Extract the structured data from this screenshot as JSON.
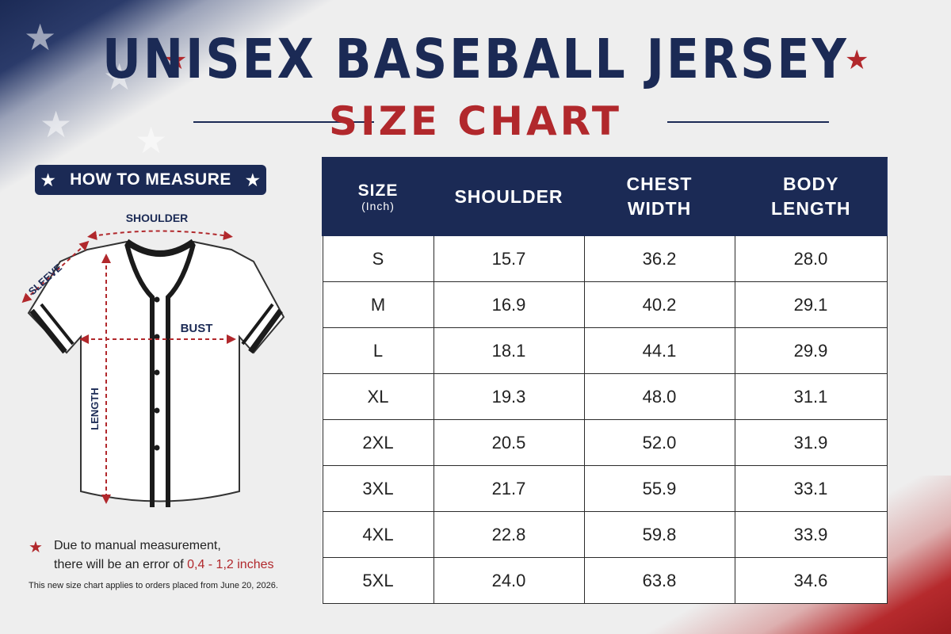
{
  "title": "UNISEX BASEBALL JERSEY",
  "subtitle": "SIZE CHART",
  "how_to_measure": "HOW TO MEASURE",
  "diagram_labels": {
    "shoulder": "SHOULDER",
    "sleeve": "SLEEVE",
    "bust": "BUST",
    "length": "LENGTH"
  },
  "note": {
    "line1": "Due to manual measurement,",
    "line2_prefix": "there will be an error of",
    "line2_error": "0,4 - 1,2 inches"
  },
  "disclaimer": "This new size chart applies to orders placed from June 20, 2026.",
  "table": {
    "headers": {
      "size": "SIZE",
      "size_unit": "(Inch)",
      "shoulder": "SHOULDER",
      "chest_1": "CHEST",
      "chest_2": "WIDTH",
      "body_1": "BODY",
      "body_2": "LENGTH"
    },
    "rows": [
      [
        "S",
        "15.7",
        "36.2",
        "28.0"
      ],
      [
        "M",
        "16.9",
        "40.2",
        "29.1"
      ],
      [
        "L",
        "18.1",
        "44.1",
        "29.9"
      ],
      [
        "XL",
        "19.3",
        "48.0",
        "31.1"
      ],
      [
        "2XL",
        "20.5",
        "52.0",
        "31.9"
      ],
      [
        "3XL",
        "21.7",
        "55.9",
        "33.1"
      ],
      [
        "4XL",
        "22.8",
        "59.8",
        "33.9"
      ],
      [
        "5XL",
        "24.0",
        "63.8",
        "34.6"
      ]
    ]
  },
  "colors": {
    "navy": "#1b2a55",
    "red": "#b1282c"
  }
}
